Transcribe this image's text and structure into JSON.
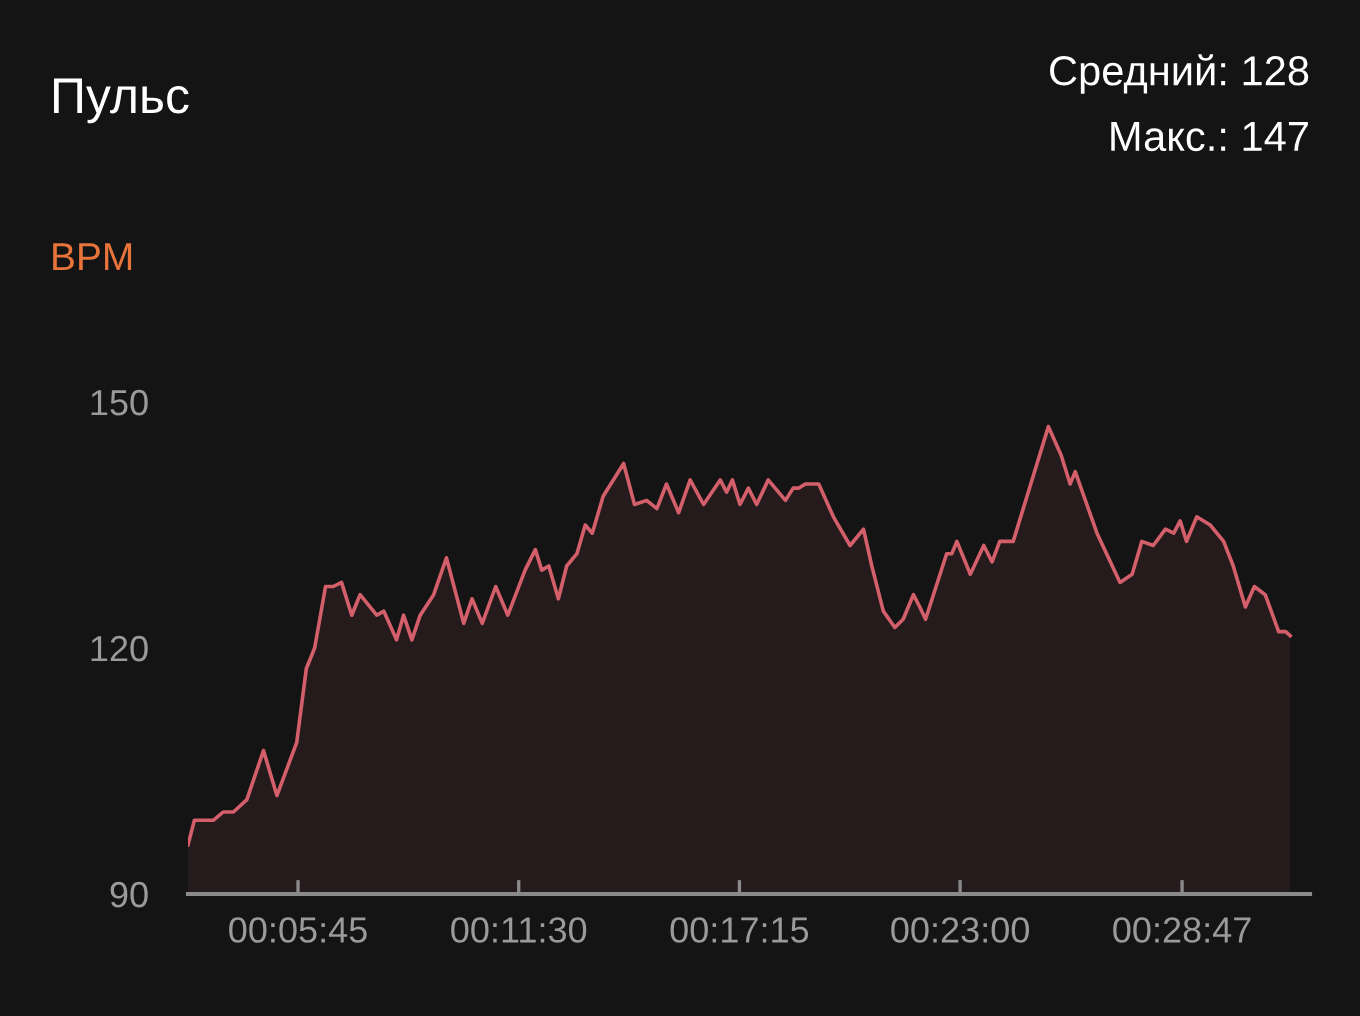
{
  "chart_data": {
    "type": "area",
    "title": "Пульс",
    "ylabel": "BPM",
    "annotations": [
      "Средний: 128",
      "Макс.: 147"
    ],
    "color": "#d35f6b",
    "x": [
      173,
      183,
      213,
      228,
      244,
      265,
      291,
      312,
      343,
      358,
      371,
      388,
      400,
      413,
      429,
      442,
      468,
      479,
      499,
      510,
      523,
      536,
      557,
      577,
      604,
      617,
      633,
      654,
      673,
      700,
      716,
      726,
      737,
      752,
      765,
      781,
      794,
      805,
      822,
      854,
      871,
      890,
      906,
      921,
      940,
      958,
      979,
      1005,
      1015,
      1024,
      1036,
      1049,
      1062,
      1080,
      1107,
      1119,
      1128,
      1138,
      1159,
      1182,
      1208,
      1229,
      1242,
      1260,
      1278,
      1291,
      1307,
      1317,
      1326,
      1359,
      1367,
      1375,
      1396,
      1417,
      1430,
      1442,
      1463,
      1518,
      1538,
      1552,
      1560,
      1594,
      1630,
      1649,
      1664,
      1682,
      1701,
      1714,
      1724,
      1734,
      1750,
      1771,
      1792,
      1807,
      1826,
      1840,
      1857,
      1878,
      1889,
      1896
    ],
    "values": [
      96,
      99,
      99,
      100,
      100,
      101.5,
      107.5,
      102,
      108.5,
      117.5,
      120,
      127.5,
      127.5,
      128,
      124,
      126.5,
      124,
      124.5,
      121,
      124,
      121,
      124,
      126.5,
      131,
      123,
      126,
      123,
      127.5,
      124,
      129.5,
      132,
      129.5,
      130,
      126,
      130,
      131.5,
      135,
      134,
      138.5,
      142.5,
      137.5,
      138,
      137,
      140,
      136.5,
      140.5,
      137.5,
      140.5,
      139,
      140.5,
      137.5,
      139.5,
      137.5,
      140.5,
      138,
      139.5,
      139.5,
      140,
      140,
      136,
      132.5,
      134.5,
      130,
      124.5,
      122.5,
      123.5,
      126.5,
      125,
      123.5,
      131.5,
      131.5,
      133,
      129,
      132.5,
      130.5,
      133,
      133,
      147,
      143.5,
      140,
      141.5,
      134,
      128,
      129,
      133,
      132.5,
      134.5,
      134,
      135.5,
      133,
      136,
      135,
      133,
      130,
      125,
      127.5,
      126.5,
      122,
      122,
      121.5
    ],
    "xlim": [
      173,
      1927
    ],
    "xticks": [
      {
        "value": 345,
        "label": "00:05:45"
      },
      {
        "value": 690,
        "label": "00:11:30"
      },
      {
        "value": 1035,
        "label": "00:17:15"
      },
      {
        "value": 1380,
        "label": "00:23:00"
      },
      {
        "value": 1727,
        "label": "00:28:47"
      }
    ],
    "ylim": [
      90,
      150
    ],
    "yticks": [
      90,
      120,
      150
    ]
  }
}
